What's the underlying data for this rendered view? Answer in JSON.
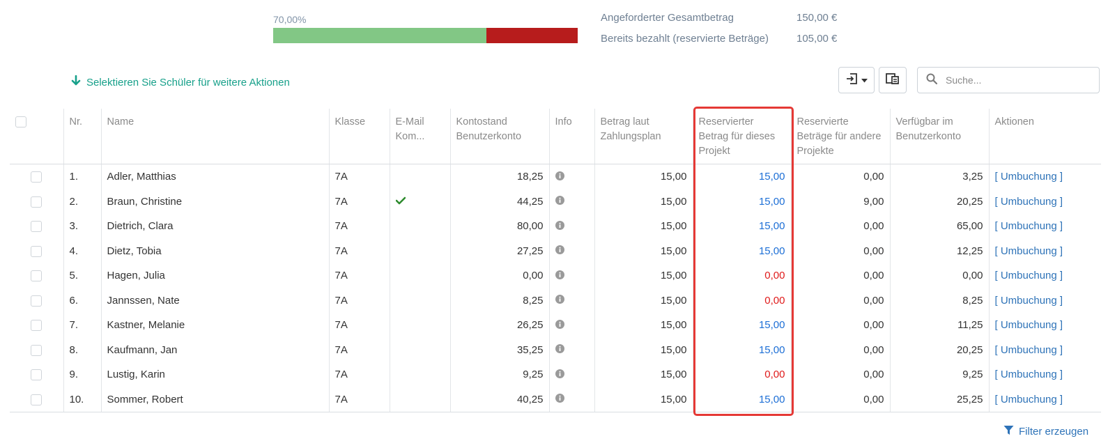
{
  "progress": {
    "percent_label": "70,00%",
    "paid_fraction": 0.7,
    "paid_color": "#82c785",
    "open_color": "#b71c1c"
  },
  "summary": {
    "requested_label": "Angeforderter Gesamtbetrag",
    "requested_value": "150,00 €",
    "paid_label": "Bereits bezahlt (reservierte Beträge)",
    "paid_value": "105,00 €"
  },
  "selection_hint": "Selektieren Sie Schüler für weitere Aktionen",
  "toolbar": {
    "export_icon": "export-icon",
    "columns_icon": "columns-icon"
  },
  "search": {
    "placeholder": "Suche..."
  },
  "table": {
    "headers": {
      "nr": "Nr.",
      "name": "Name",
      "klasse": "Klasse",
      "email": "E-Mail Kom...",
      "kontostand": "Kontostand Benutzerkonto",
      "info": "Info",
      "betrag": "Betrag laut Zahlungsplan",
      "reserviert": "Reservierter Betrag für dieses Projekt",
      "andere": "Reservierte Beträge für andere Projekte",
      "verfuegbar": "Verfügbar im Benutzerkonto",
      "aktionen": "Aktionen"
    },
    "rows": [
      {
        "nr": "1.",
        "name": "Adler, Matthias",
        "klasse": "7A",
        "email": false,
        "kontostand": "18,25",
        "betrag": "15,00",
        "reserviert": "15,00",
        "reserviert_status": "ok",
        "andere": "0,00",
        "verfuegbar": "3,25",
        "aktion": "[ Umbuchung ]"
      },
      {
        "nr": "2.",
        "name": "Braun, Christine",
        "klasse": "7A",
        "email": true,
        "kontostand": "44,25",
        "betrag": "15,00",
        "reserviert": "15,00",
        "reserviert_status": "ok",
        "andere": "9,00",
        "verfuegbar": "20,25",
        "aktion": "[ Umbuchung ]"
      },
      {
        "nr": "3.",
        "name": "Dietrich, Clara",
        "klasse": "7A",
        "email": false,
        "kontostand": "80,00",
        "betrag": "15,00",
        "reserviert": "15,00",
        "reserviert_status": "ok",
        "andere": "0,00",
        "verfuegbar": "65,00",
        "aktion": "[ Umbuchung ]"
      },
      {
        "nr": "4.",
        "name": "Dietz, Tobia",
        "klasse": "7A",
        "email": false,
        "kontostand": "27,25",
        "betrag": "15,00",
        "reserviert": "15,00",
        "reserviert_status": "ok",
        "andere": "0,00",
        "verfuegbar": "12,25",
        "aktion": "[ Umbuchung ]"
      },
      {
        "nr": "5.",
        "name": "Hagen, Julia",
        "klasse": "7A",
        "email": false,
        "kontostand": "0,00",
        "betrag": "15,00",
        "reserviert": "0,00",
        "reserviert_status": "missing",
        "andere": "0,00",
        "verfuegbar": "0,00",
        "aktion": "[ Umbuchung ]"
      },
      {
        "nr": "6.",
        "name": "Jannssen, Nate",
        "klasse": "7A",
        "email": false,
        "kontostand": "8,25",
        "betrag": "15,00",
        "reserviert": "0,00",
        "reserviert_status": "missing",
        "andere": "0,00",
        "verfuegbar": "8,25",
        "aktion": "[ Umbuchung ]"
      },
      {
        "nr": "7.",
        "name": "Kastner, Melanie",
        "klasse": "7A",
        "email": false,
        "kontostand": "26,25",
        "betrag": "15,00",
        "reserviert": "15,00",
        "reserviert_status": "ok",
        "andere": "0,00",
        "verfuegbar": "11,25",
        "aktion": "[ Umbuchung ]"
      },
      {
        "nr": "8.",
        "name": "Kaufmann, Jan",
        "klasse": "7A",
        "email": false,
        "kontostand": "35,25",
        "betrag": "15,00",
        "reserviert": "15,00",
        "reserviert_status": "ok",
        "andere": "0,00",
        "verfuegbar": "20,25",
        "aktion": "[ Umbuchung ]"
      },
      {
        "nr": "9.",
        "name": "Lustig, Karin",
        "klasse": "7A",
        "email": false,
        "kontostand": "9,25",
        "betrag": "15,00",
        "reserviert": "0,00",
        "reserviert_status": "missing",
        "andere": "0,00",
        "verfuegbar": "9,25",
        "aktion": "[ Umbuchung ]"
      },
      {
        "nr": "10.",
        "name": "Sommer, Robert",
        "klasse": "7A",
        "email": false,
        "kontostand": "40,25",
        "betrag": "15,00",
        "reserviert": "15,00",
        "reserviert_status": "ok",
        "andere": "0,00",
        "verfuegbar": "25,25",
        "aktion": "[ Umbuchung ]"
      }
    ]
  },
  "colors": {
    "reserved_ok": "#1d6fd6",
    "reserved_missing": "#e01b1b",
    "highlight_border": "#e53935",
    "accent_teal": "#17a08a",
    "link_blue": "#2e73b8",
    "check_green": "#2e8b2e"
  },
  "filter_label": "Filter erzeugen"
}
